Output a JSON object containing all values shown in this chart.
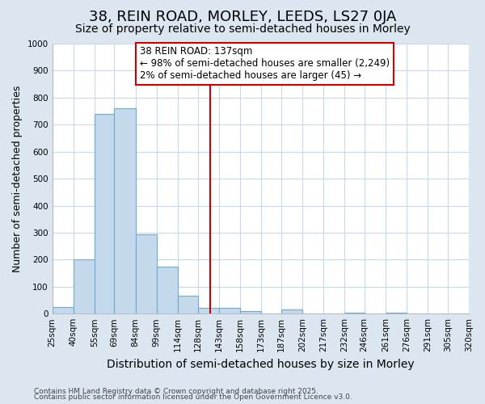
{
  "title": "38, REIN ROAD, MORLEY, LEEDS, LS27 0JA",
  "subtitle": "Size of property relative to semi-detached houses in Morley",
  "xlabel": "Distribution of semi-detached houses by size in Morley",
  "ylabel": "Number of semi-detached properties",
  "footnote1": "Contains HM Land Registry data © Crown copyright and database right 2025.",
  "footnote2": "Contains public sector information licensed under the Open Government Licence v3.0.",
  "bar_left_edges": [
    25,
    40,
    55,
    69,
    84,
    99,
    114,
    128,
    143,
    158,
    173,
    187,
    202,
    217,
    232,
    246,
    261,
    276,
    291,
    305
  ],
  "bar_heights": [
    25,
    200,
    740,
    760,
    295,
    175,
    65,
    20,
    20,
    10,
    0,
    15,
    0,
    0,
    5,
    0,
    5,
    0,
    0,
    0
  ],
  "bar_widths": [
    15,
    15,
    14,
    15,
    15,
    15,
    14,
    15,
    15,
    15,
    14,
    15,
    15,
    15,
    14,
    15,
    15,
    15,
    14,
    15
  ],
  "tick_labels": [
    "25sqm",
    "40sqm",
    "55sqm",
    "69sqm",
    "84sqm",
    "99sqm",
    "114sqm",
    "128sqm",
    "143sqm",
    "158sqm",
    "173sqm",
    "187sqm",
    "202sqm",
    "217sqm",
    "232sqm",
    "246sqm",
    "261sqm",
    "276sqm",
    "291sqm",
    "305sqm",
    "320sqm"
  ],
  "tick_positions": [
    25,
    40,
    55,
    69,
    84,
    99,
    114,
    128,
    143,
    158,
    173,
    187,
    202,
    217,
    232,
    246,
    261,
    276,
    291,
    305,
    320
  ],
  "bar_color": "#c5d9ed",
  "bar_edge_color": "#6aaad4",
  "vline_x": 137,
  "vline_color": "#cc0000",
  "annotation_title": "38 REIN ROAD: 137sqm",
  "annotation_line1": "← 98% of semi-detached houses are smaller (2,249)",
  "annotation_line2": "2% of semi-detached houses are larger (45) →",
  "ylim": [
    0,
    1000
  ],
  "figure_bg_color": "#dce6f0",
  "plot_bg_color": "#ffffff",
  "grid_color": "#c8d8e8",
  "title_fontsize": 13,
  "subtitle_fontsize": 10,
  "tick_fontsize": 7.5,
  "ylabel_fontsize": 9,
  "xlabel_fontsize": 10,
  "annotation_fontsize": 8.5,
  "footnote_fontsize": 6.5
}
